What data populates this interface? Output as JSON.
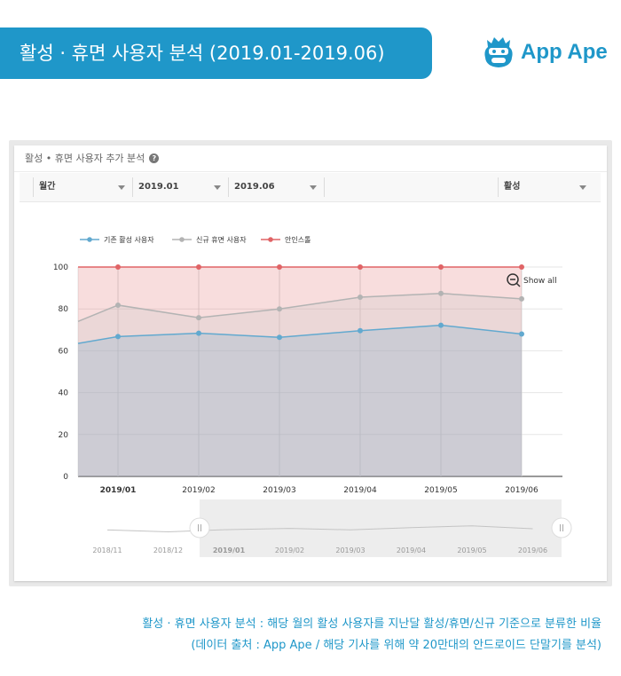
{
  "header": {
    "title": "활성 · 휴면 사용자 분석 (2019.01-2019.06)",
    "logo_text": "App Ape"
  },
  "panel": {
    "title": "활성 • 휴면 사용자 추가 분석",
    "filters": {
      "period": "월간",
      "start": "2019.01",
      "end": "2019.06",
      "metric": "활성"
    },
    "show_all": "Show all"
  },
  "colors": {
    "brand": "#1f97c9",
    "active": "#62a9cf",
    "dormant": "#b3b3b3",
    "churn": "#e06466"
  },
  "chart_data": {
    "type": "area",
    "stacked": true,
    "categories": [
      "2019/01",
      "2019/02",
      "2019/03",
      "2019/04",
      "2019/05",
      "2019/06"
    ],
    "series": [
      {
        "name": "기존 활성 사용자",
        "values": [
          66.8,
          68.4,
          66.4,
          69.6,
          72.2,
          68.0
        ]
      },
      {
        "name": "신규 휴면 사용자",
        "values": [
          81.8,
          75.8,
          80.0,
          85.6,
          87.4,
          84.8
        ]
      },
      {
        "name": "안인스톨",
        "values": [
          100,
          100,
          100,
          100,
          100,
          100
        ]
      }
    ],
    "left_edge": {
      "active": 63.5,
      "dormant": 74
    },
    "ylim": [
      0,
      100
    ],
    "yticks": [
      0,
      20,
      40,
      60,
      80,
      100
    ],
    "selected_category": "2019/01",
    "legend_position": "top-left",
    "navigator": {
      "categories": [
        "2018/11",
        "2018/12",
        "2019/01",
        "2019/02",
        "2019/03",
        "2019/04",
        "2019/05",
        "2019/06"
      ],
      "values": [
        66.3,
        63.6,
        66.8,
        68.4,
        66.4,
        69.6,
        72.2,
        68.0
      ],
      "selected_from": "2019/01",
      "selected_to": "2019/06"
    }
  },
  "caption": {
    "line1": "활성 · 휴면 사용자 분석 : 해당 월의 활성 사용자를 지난달 활성/휴면/신규 기준으로 분류한 비율",
    "line2": "(데이터 출처 : App Ape / 해당 기사를 위해 약 20만대의 안드로이드 단말기를 분석)"
  }
}
